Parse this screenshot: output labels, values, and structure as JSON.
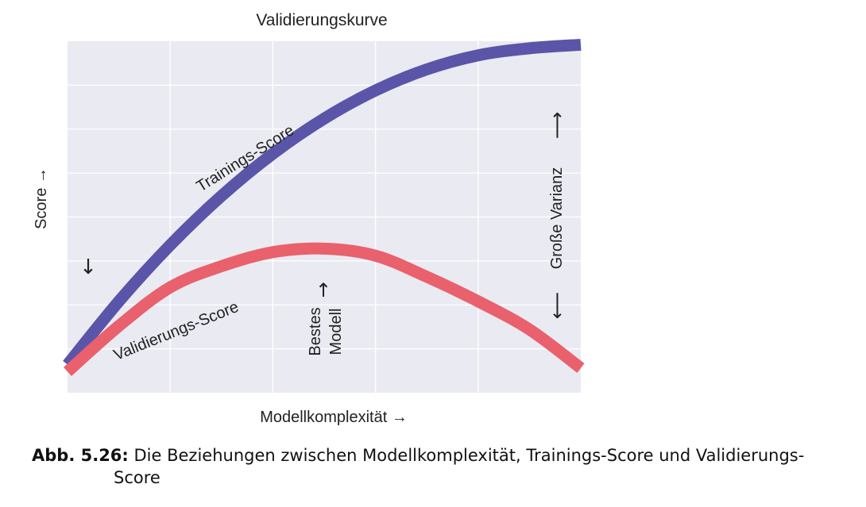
{
  "chart_data": {
    "type": "line",
    "title": "Validierungskurve",
    "xlabel": "Modellkomplexität →",
    "ylabel": "Score →",
    "xlim": [
      0,
      10
    ],
    "ylim": [
      0,
      10
    ],
    "grid": true,
    "series": [
      {
        "name": "Trainings-Score",
        "color": "#5a55a8",
        "x": [
          0,
          1,
          2,
          3,
          4,
          5,
          6,
          7,
          8,
          9,
          10
        ],
        "y": [
          0.8,
          2.6,
          4.2,
          5.6,
          6.8,
          7.8,
          8.6,
          9.2,
          9.6,
          9.8,
          9.9
        ]
      },
      {
        "name": "Validierungs-Score",
        "color": "#e8616c",
        "x": [
          0,
          1,
          2,
          3,
          4,
          5,
          6,
          7,
          8,
          9,
          10
        ],
        "y": [
          0.6,
          1.9,
          3.0,
          3.6,
          4.0,
          4.1,
          3.9,
          3.3,
          2.6,
          1.8,
          0.7
        ]
      }
    ],
    "annotations": {
      "left_arrow": "↓",
      "best_model_line1": "Bestes",
      "best_model_line2": "Modell",
      "best_model_arrow": "↑",
      "variance_label": "Große Varianz",
      "variance_arrow_up": "⟶",
      "variance_arrow_down": "⟵"
    }
  },
  "caption": {
    "label": "Abb. 5.26:",
    "text_line1": " Die Beziehungen zwischen Modellkomplexität, Trainings-Score und Validierungs-",
    "text_line2": "Score"
  }
}
